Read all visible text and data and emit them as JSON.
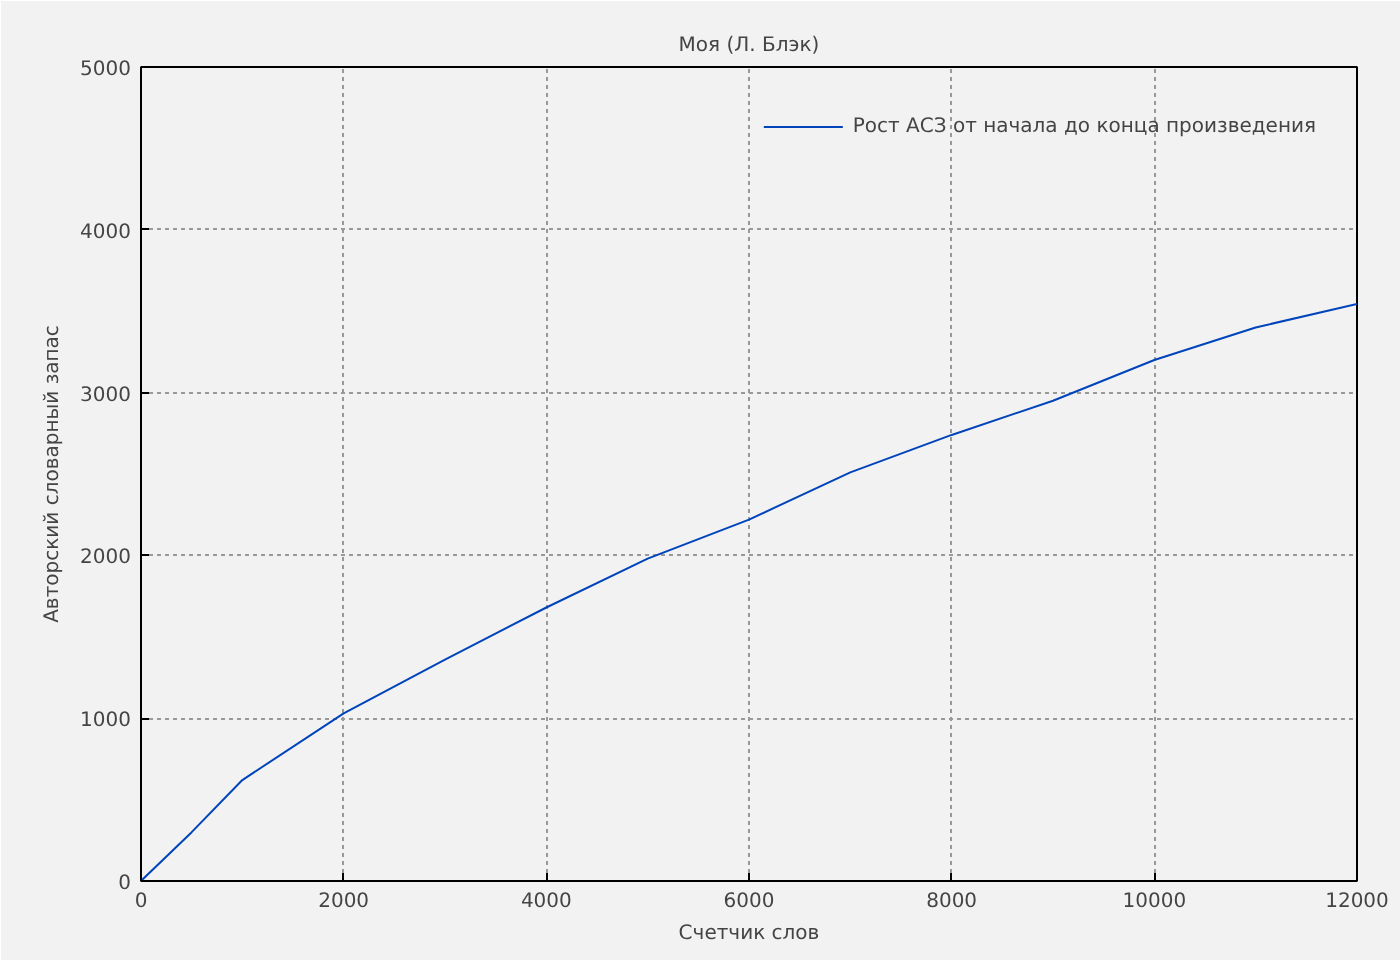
{
  "chart_data": {
    "type": "line",
    "title": "Моя (Л. Блэк)",
    "xlabel": "Счетчик слов",
    "ylabel": "Авторский словарный запас",
    "x": [
      0,
      500,
      1000,
      2000,
      3000,
      4000,
      5000,
      6000,
      7000,
      8000,
      9000,
      10000,
      11000,
      12000
    ],
    "series": [
      {
        "name": "Рост АСЗ от начала до конца произведения",
        "color": "#0044bb",
        "values": [
          0,
          300,
          620,
          1030,
          1360,
          1680,
          1980,
          2220,
          2510,
          2740,
          2950,
          3200,
          3400,
          3545
        ]
      }
    ],
    "xlim": [
      0,
      12000
    ],
    "ylim": [
      0,
      5000
    ],
    "xticks": [
      0,
      2000,
      4000,
      6000,
      8000,
      10000,
      12000
    ],
    "yticks": [
      0,
      1000,
      2000,
      3000,
      4000,
      5000
    ],
    "grid": true,
    "legend": "top right"
  }
}
